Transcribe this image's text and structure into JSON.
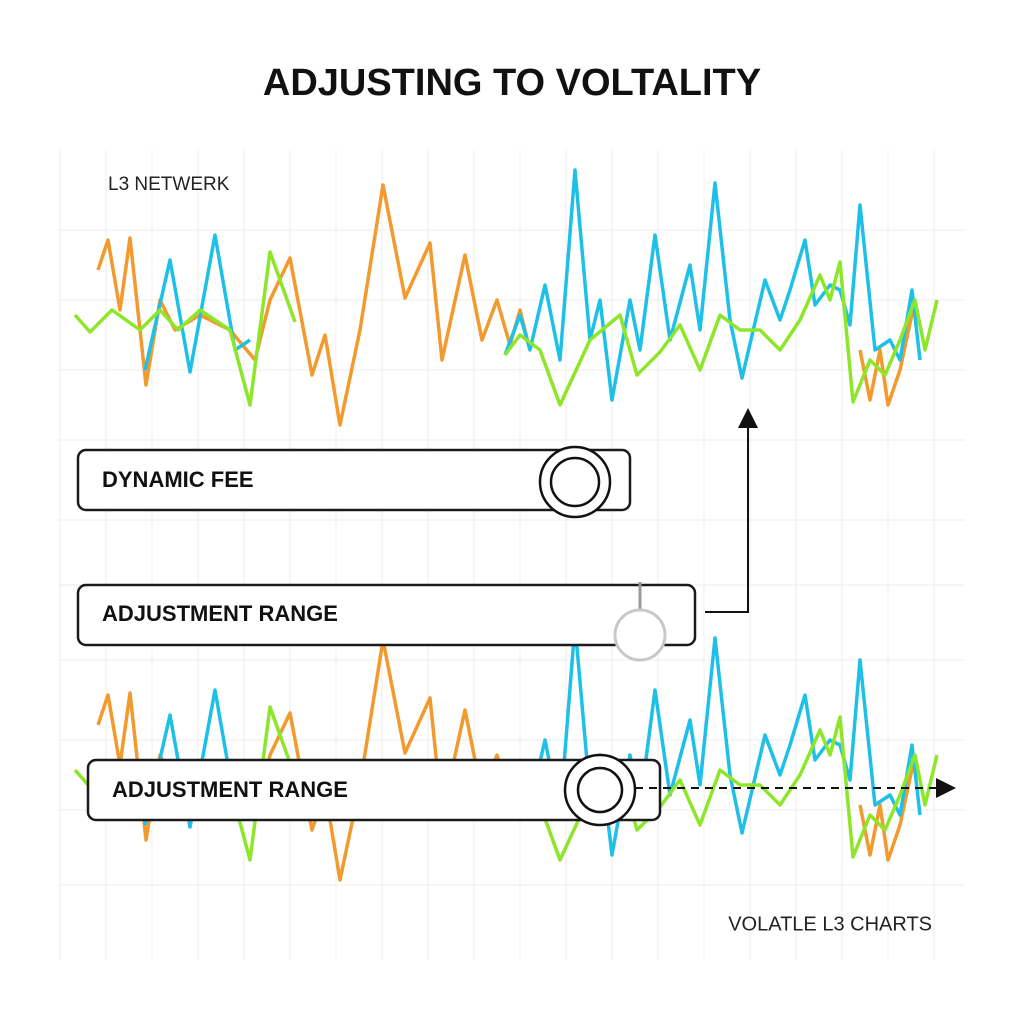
{
  "title": "ADJUSTING TO VOLTALITY",
  "labels": {
    "top": "L3 NETWERK",
    "bottom": "VOLATLE L3 CHARTS"
  },
  "controls": [
    {
      "label": "DYNAMIC FEE"
    },
    {
      "label": "ADJUSTMENT RANGE"
    },
    {
      "label": "ADJUSTMENT RANGE"
    }
  ]
}
